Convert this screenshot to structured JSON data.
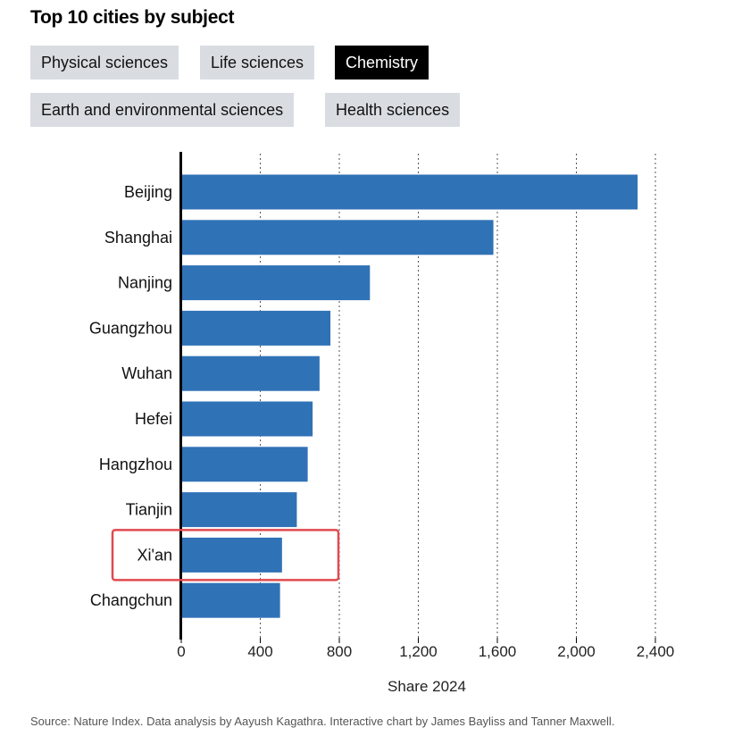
{
  "header": {
    "title": "Top 10 cities by subject"
  },
  "tabs": [
    {
      "label": "Physical sciences",
      "active": false
    },
    {
      "label": "Life sciences",
      "active": false
    },
    {
      "label": "Chemistry",
      "active": true
    },
    {
      "label": "Earth and environmental sciences",
      "active": false
    },
    {
      "label": "Health sciences",
      "active": false
    }
  ],
  "chart_data": {
    "type": "bar",
    "orientation": "horizontal",
    "categories": [
      "Beijing",
      "Shanghai",
      "Nanjing",
      "Guangzhou",
      "Wuhan",
      "Hefei",
      "Hangzhou",
      "Tianjin",
      "Xi'an",
      "Changchun"
    ],
    "values": [
      2310,
      1580,
      955,
      755,
      700,
      665,
      640,
      585,
      510,
      500
    ],
    "xlabel": "Share 2024",
    "xlim": [
      0,
      2400
    ],
    "x_ticks": [
      0,
      400,
      800,
      1200,
      1600,
      2000,
      2400
    ],
    "x_tick_labels": [
      "0",
      "400",
      "800",
      "1,200",
      "1,600",
      "2,000",
      "2,400"
    ],
    "grid": "vertical dotted",
    "highlighted_category": "Xi'an",
    "colors": {
      "bar": "#3072b6",
      "highlight_box": "#e04a4f",
      "grid": "#555555",
      "axis": "#000000"
    }
  },
  "footer": {
    "source": "Source: Nature Index. Data analysis by Aayush Kagathra. Interactive chart by James Bayliss and Tanner Maxwell."
  }
}
